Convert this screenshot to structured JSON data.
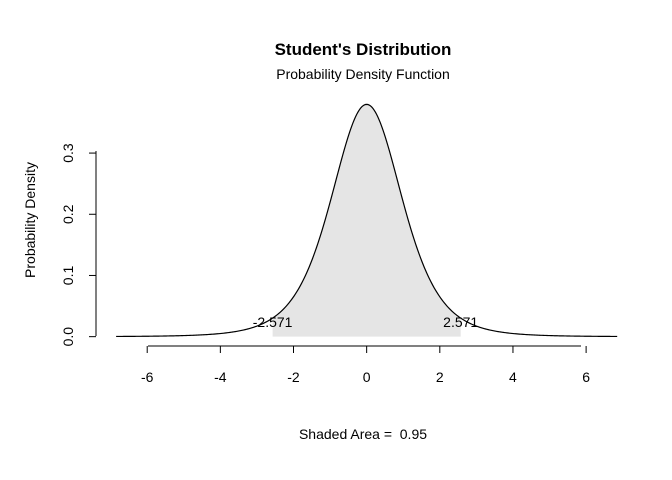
{
  "chart_data": {
    "type": "area",
    "title": "Student's Distribution",
    "subtitle": "Probability Density Function",
    "xlabel": "",
    "ylabel": "Probability Density",
    "distribution": {
      "family": "t",
      "df": 5
    },
    "x_range": [
      -6.85,
      6.85
    ],
    "xlim": [
      -7.4,
      7.2
    ],
    "ylim": [
      -0.012,
      0.39
    ],
    "x_ticks": [
      "-6",
      "-4",
      "-2",
      "0",
      "2",
      "4",
      "6"
    ],
    "y_ticks": [
      "0.0",
      "0.1",
      "0.2",
      "0.3"
    ],
    "shaded_interval": [
      -2.571,
      2.571
    ],
    "shade_color": "#e5e5e5",
    "line_color": "#000000",
    "critical_labels": [
      {
        "x": -2.571,
        "text": "-2.571"
      },
      {
        "x": 2.571,
        "text": "2.571"
      }
    ],
    "annotation": "Shaded Area =  0.95",
    "grid": false
  }
}
